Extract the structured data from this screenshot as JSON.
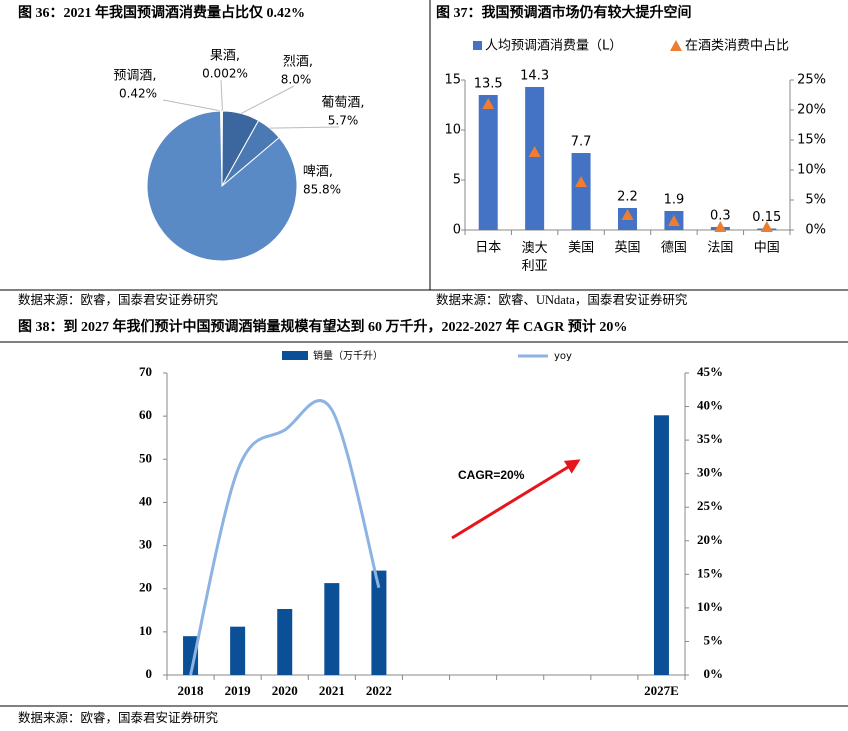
{
  "chart_data": [
    {
      "type": "pie",
      "title": "图 36：2021 年我国预调酒消费量占比仅 0.42%",
      "categories": [
        "预调酒,",
        "果酒,",
        "烈酒,",
        "葡萄酒,",
        "啤酒,"
      ],
      "values": [
        0.42,
        0.002,
        8.0,
        5.7,
        85.8
      ],
      "value_labels": [
        "0.42%",
        "0.002%",
        "8.0%",
        "5.7%",
        "85.8%"
      ],
      "colors": [
        "#ffffff",
        "#ffffff",
        "#3b679e",
        "#4a79b4",
        "#5a8ac6"
      ],
      "label_colors": [
        "#c00000",
        "#000000",
        "#000000",
        "#000000",
        "#000000"
      ],
      "source": "数据来源：欧睿，国泰君安证券研究"
    },
    {
      "type": "bar",
      "title": "图 37：我国预调酒市场仍有较大提升空间",
      "categories": [
        "日本",
        "澳大利亚",
        "美国",
        "英国",
        "德国",
        "法国",
        "中国"
      ],
      "series": [
        {
          "name": "人均预调酒消费量（L）",
          "color": "#4472c4",
          "values": [
            13.5,
            14.3,
            7.7,
            2.2,
            1.9,
            0.3,
            0.15
          ]
        },
        {
          "name": "在酒类消费中占比",
          "color": "#ed7d31",
          "axis": "y2",
          "marker": "triangle",
          "values": [
            21,
            13,
            8,
            2.5,
            1.5,
            0.5,
            0.5
          ]
        }
      ],
      "ylim": [
        0,
        15
      ],
      "yticks": [
        0,
        5,
        10,
        15
      ],
      "y2lim": [
        0,
        25
      ],
      "y2ticks": [
        {
          "value": 0,
          "label": "0%"
        },
        {
          "value": 5,
          "label": "5%"
        },
        {
          "value": 10,
          "label": "10%"
        },
        {
          "value": 15,
          "label": "15%"
        },
        {
          "value": 20,
          "label": "20%"
        },
        {
          "value": 25,
          "label": "25%"
        }
      ],
      "source": "数据来源：欧睿、UNdata，国泰君安证券研究"
    },
    {
      "type": "bar",
      "title": "图 38：到 2027 年我们预计中国预调酒销量规模有望达到 60 万千升，2022-2027 年 CAGR 预计 20%",
      "categories": [
        "2018",
        "2019",
        "2020",
        "2021",
        "2022",
        null,
        null,
        null,
        null,
        null,
        "2027E"
      ],
      "series": [
        {
          "name": "销量（万千升）",
          "color": "#0b4f96",
          "values": [
            9,
            11.2,
            15.3,
            21.3,
            24.2,
            null,
            null,
            null,
            null,
            null,
            60.2
          ]
        },
        {
          "name": "yoy",
          "color": "#8db3e2",
          "axis": "y2",
          "line": "smooth",
          "values": [
            0,
            30.5,
            36.5,
            39.5,
            13,
            null,
            null,
            null,
            null,
            null,
            null
          ]
        }
      ],
      "ylim": [
        0,
        70
      ],
      "yticks": [
        0,
        10,
        20,
        30,
        40,
        50,
        60,
        70
      ],
      "y2lim": [
        0,
        45
      ],
      "y2ticks": [
        {
          "value": 0,
          "label": "0%"
        },
        {
          "value": 5,
          "label": "5%"
        },
        {
          "value": 10,
          "label": "10%"
        },
        {
          "value": 15,
          "label": "15%"
        },
        {
          "value": 20,
          "label": "20%"
        },
        {
          "value": 25,
          "label": "25%"
        },
        {
          "value": 30,
          "label": "30%"
        },
        {
          "value": 35,
          "label": "35%"
        },
        {
          "value": 40,
          "label": "40%"
        },
        {
          "value": 45,
          "label": "45%"
        }
      ],
      "annotation": "CAGR=20%",
      "annotation_color": "#e8141b",
      "source": "数据来源：欧睿，国泰君安证券研究"
    }
  ]
}
